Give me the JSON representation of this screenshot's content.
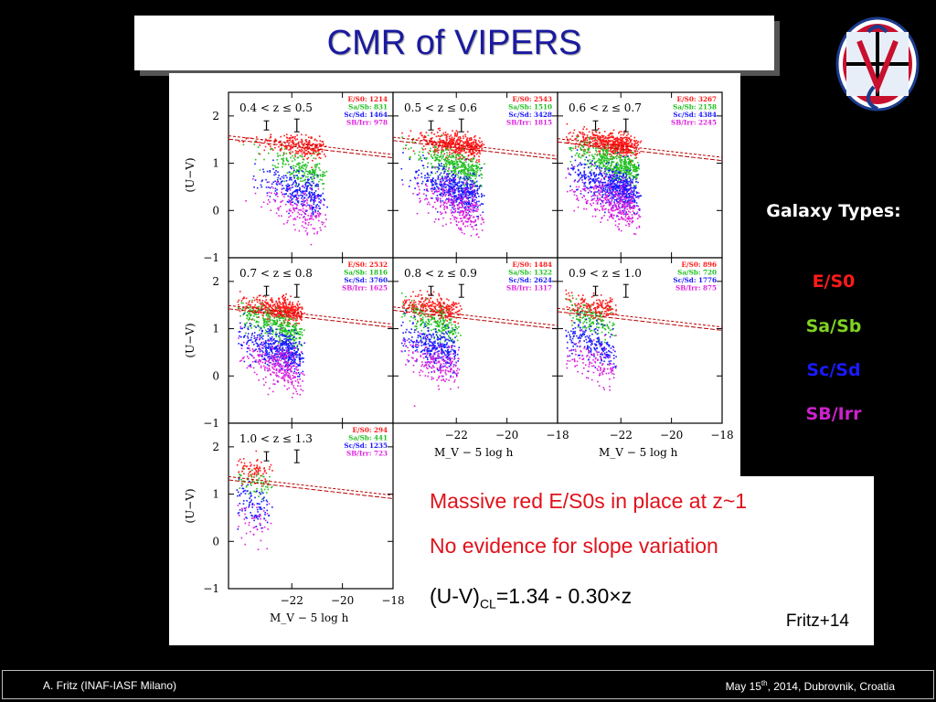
{
  "slide": {
    "title": "CMR of VIPERS",
    "logo_icon": "vipers-logo-icon",
    "text_lines": [
      "Massive red E/S0s in place at z~1",
      "No evidence for slope variation"
    ],
    "equation_main": "(U-V)",
    "equation_sub": "CL",
    "equation_rest": "=1.34 - 0.30×z",
    "citation": "Fritz+14",
    "galaxy_types_heading": "Galaxy Types:",
    "galaxy_types": [
      {
        "label": "E/S0",
        "color": "#ff1a1a"
      },
      {
        "label": "Sa/Sb",
        "color": "#7ed321"
      },
      {
        "label": "Sc/Sd",
        "color": "#1a1aff"
      },
      {
        "label": "SB/Irr",
        "color": "#cc22cc"
      }
    ],
    "footer_left": "A. Fritz (INAF-IASF Milano)",
    "footer_right_pre": "May 15",
    "footer_right_sup": "th",
    "footer_right_post": ", 2014, Dubrovnik, Croatia"
  },
  "chart_data": {
    "type": "scatter",
    "xlabel": "M_V − 5 log h",
    "ylabel": "(U−V)",
    "xlim": [
      -24.5,
      -18
    ],
    "ylim": [
      -1,
      2.5
    ],
    "xticks": [
      -22,
      -20,
      -18
    ],
    "yticks": [
      -1,
      0,
      1,
      2
    ],
    "series_colors": {
      "E/S0": "#ff1a1a",
      "Sa/Sb": "#22c022",
      "Sc/Sd": "#1a1aff",
      "SB/Irr": "#dd22dd"
    },
    "panels": [
      {
        "zlabel": "0.4 < z ≤ 0.5",
        "counts": {
          "E/S0": "E/S0: 1214",
          "Sa/Sb": "Sa/Sb: 831",
          "Sc/Sd": "Sc/Sd: 1464",
          "SB/Irr": "SB/Irr: 978"
        }
      },
      {
        "zlabel": "0.5 < z ≤ 0.6",
        "counts": {
          "E/S0": "E/S0: 2543",
          "Sa/Sb": "Sa/Sb: 1510",
          "Sc/Sd": "Sc/Sd: 3428",
          "SB/Irr": "SB/Irr: 1815"
        }
      },
      {
        "zlabel": "0.6 < z ≤ 0.7",
        "counts": {
          "E/S0": "E/S0: 3267",
          "Sa/Sb": "Sa/Sb: 2158",
          "Sc/Sd": "Sc/Sd: 4384",
          "SB/Irr": "SB/Irr: 2245"
        }
      },
      {
        "zlabel": "0.7 < z ≤ 0.8",
        "counts": {
          "E/S0": "E/S0: 2532",
          "Sa/Sb": "Sa/Sb: 1816",
          "Sc/Sd": "Sc/Sd: 3760",
          "SB/Irr": "SB/Irr: 1625"
        }
      },
      {
        "zlabel": "0.8 < z ≤ 0.9",
        "counts": {
          "E/S0": "E/S0: 1484",
          "Sa/Sb": "Sa/Sb: 1322",
          "Sc/Sd": "Sc/Sd: 2624",
          "SB/Irr": "SB/Irr: 1317"
        }
      },
      {
        "zlabel": "0.9 < z ≤ 1.0",
        "counts": {
          "E/S0": "E/S0: 896",
          "Sa/Sb": "Sa/Sb: 720",
          "Sc/Sd": "Sc/Sd: 1776",
          "SB/Irr": "SB/Irr: 875"
        }
      },
      {
        "zlabel": "1.0 < z ≤ 1.3",
        "counts": {
          "E/S0": "E/S0: 294",
          "Sa/Sb": "Sa/Sb: 441",
          "Sc/Sd": "Sc/Sd: 1235",
          "SB/Irr": "SB/Irr: 723"
        }
      }
    ]
  }
}
